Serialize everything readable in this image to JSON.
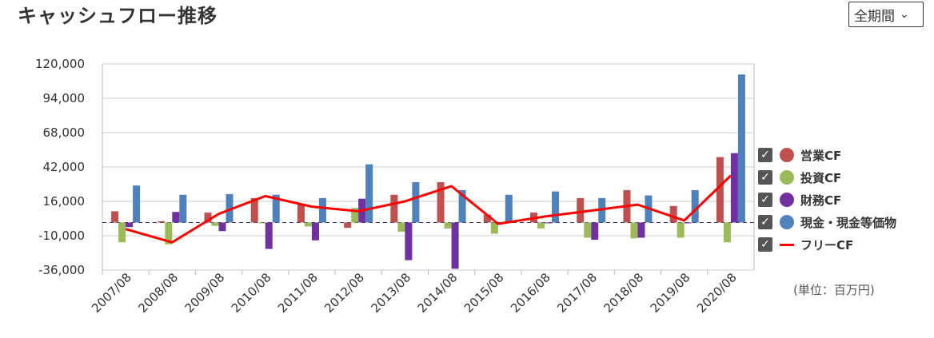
{
  "header": {
    "title": "キャッシュフロー推移"
  },
  "period_select": {
    "value": "全期間"
  },
  "unit_label": "(単位：百万円)",
  "legend": [
    {
      "label": "営業CF",
      "color": "#c0504d",
      "checked": true,
      "kind": "circle"
    },
    {
      "label": "投資CF",
      "color": "#9bbb59",
      "checked": true,
      "kind": "circle"
    },
    {
      "label": "財務CF",
      "color": "#7030a0",
      "checked": true,
      "kind": "circle"
    },
    {
      "label": "現金・現金等価物",
      "color": "#4f81bd",
      "checked": true,
      "kind": "circle"
    },
    {
      "label": "フリーCF",
      "color": "#ff0000",
      "checked": true,
      "kind": "line"
    }
  ],
  "chart_data": {
    "type": "bar",
    "categories": [
      "2007/08",
      "2008/08",
      "2009/08",
      "2010/08",
      "2011/08",
      "2012/08",
      "2013/08",
      "2014/08",
      "2015/08",
      "2016/08",
      "2017/08",
      "2018/08",
      "2019/08",
      "2020/08"
    ],
    "yticks": [
      "120,000",
      "94,000",
      "68,000",
      "42,000",
      "16,000",
      "-10,000",
      "-36,000"
    ],
    "ylim": [
      -36000,
      120000
    ],
    "series": [
      {
        "name": "営業CF",
        "color": "#c0504d",
        "values": [
          8500,
          1000,
          7500,
          18500,
          13500,
          -4000,
          21000,
          30500,
          6000,
          7500,
          18500,
          24500,
          12500,
          49500
        ]
      },
      {
        "name": "投資CF",
        "color": "#9bbb59",
        "values": [
          -15000,
          -16500,
          -2500,
          -500,
          -3000,
          11000,
          -7000,
          -4500,
          -8500,
          -4500,
          -11500,
          -12000,
          -11500,
          -15000
        ]
      },
      {
        "name": "財務CF",
        "color": "#7030a0",
        "values": [
          -3500,
          8000,
          -6500,
          -20000,
          -13500,
          18000,
          -28500,
          -35000,
          -500,
          -500,
          -13000,
          -11500,
          -500,
          52500
        ]
      },
      {
        "name": "現金・現金等価物",
        "color": "#4f81bd",
        "values": [
          28000,
          21000,
          21500,
          21000,
          18500,
          44000,
          30500,
          24500,
          21000,
          23500,
          18500,
          20500,
          24500,
          112000
        ]
      },
      {
        "name": "フリーCF",
        "color": "#ff0000",
        "type": "line",
        "values": [
          -5000,
          -15000,
          6500,
          20000,
          12000,
          8500,
          16000,
          27500,
          -1000,
          4500,
          9000,
          13500,
          1500,
          35500
        ]
      }
    ]
  }
}
